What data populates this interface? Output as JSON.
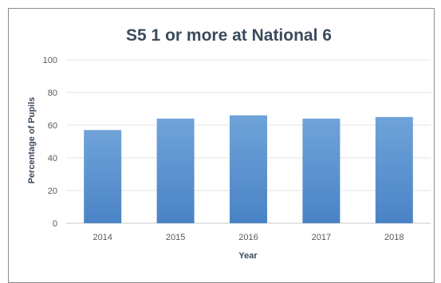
{
  "chart_data": {
    "type": "bar",
    "title": "S5 1 or more at National 6",
    "xlabel": "Year",
    "ylabel": "Percentage of Pupils",
    "categories": [
      "2014",
      "2015",
      "2016",
      "2017",
      "2018"
    ],
    "values": [
      57,
      64,
      66,
      64,
      65
    ],
    "ylim": [
      0,
      100
    ],
    "yticks": [
      0,
      20,
      40,
      60,
      80,
      100
    ],
    "grid": true,
    "legend": "none",
    "colors": {
      "bar_top": "#6fa3d9",
      "bar_bottom": "#4a83c6",
      "grid": "#e3e3e3",
      "baseline": "#c8c8c8"
    }
  }
}
